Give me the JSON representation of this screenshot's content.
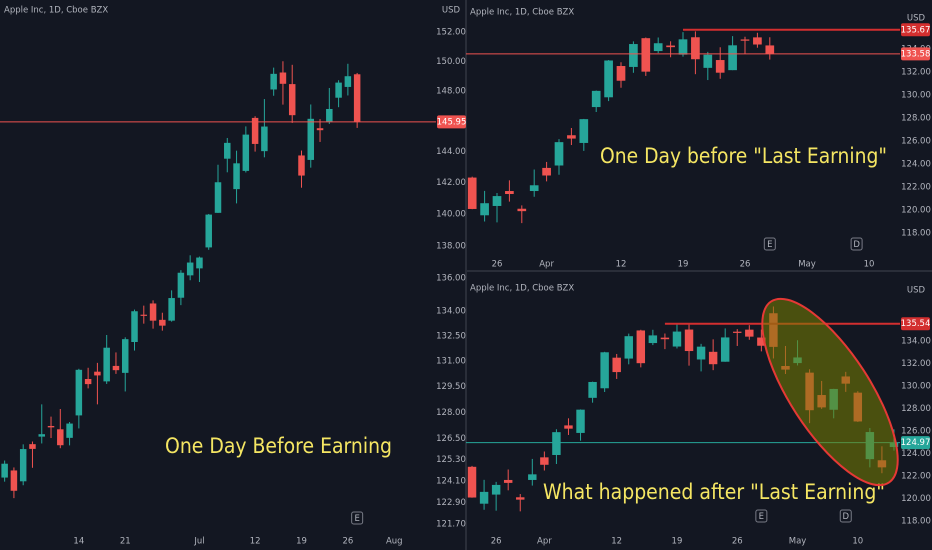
{
  "chart_data": [
    {
      "type": "candlestick",
      "title": "Apple Inc, 1D, Cboe BZX",
      "currency": "USD",
      "annotation": "One Day Before Earning",
      "log_scale": true,
      "ylim": [
        121.37,
        154.21
      ],
      "yticks": [
        {
          "value": 152,
          "label": "152.00"
        },
        {
          "value": 150,
          "label": "150.00"
        },
        {
          "value": 148,
          "label": "148.00"
        },
        {
          "value": 144,
          "label": "144.00"
        },
        {
          "value": 142,
          "label": "142.00"
        },
        {
          "value": 140,
          "label": "140.00"
        },
        {
          "value": 138,
          "label": "138.00"
        },
        {
          "value": 136,
          "label": "136.00"
        },
        {
          "value": 134,
          "label": "134.00"
        },
        {
          "value": 132.5,
          "label": "132.50"
        },
        {
          "value": 131,
          "label": "131.00"
        },
        {
          "value": 129.5,
          "label": "129.50"
        },
        {
          "value": 128,
          "label": "128.00"
        },
        {
          "value": 126.5,
          "label": "126.50"
        },
        {
          "value": 125.3,
          "label": "125.30"
        },
        {
          "value": 124.1,
          "label": "124.10"
        },
        {
          "value": 122.9,
          "label": "122.90"
        },
        {
          "value": 121.7,
          "label": "121.70"
        }
      ],
      "categories": [
        null,
        null,
        null,
        null,
        null,
        null,
        null,
        null,
        "14",
        null,
        null,
        null,
        null,
        "21",
        null,
        null,
        null,
        null,
        null,
        null,
        null,
        "Jul",
        null,
        null,
        null,
        null,
        null,
        "12",
        null,
        null,
        null,
        null,
        "19",
        null,
        null,
        null,
        null,
        "26",
        null,
        null,
        null,
        null,
        "Aug",
        null,
        null,
        null,
        null
      ],
      "open": [
        124.28,
        124.68,
        124.07,
        126.17,
        126.6,
        127.21,
        127.02,
        126.53,
        127.82,
        129.94,
        130.37,
        129.8,
        130.71,
        130.3,
        132.13,
        133.77,
        134.45,
        133.46,
        133.41,
        134.8,
        136.17,
        136.6,
        137.9,
        140.07,
        143.54,
        141.58,
        142.75,
        146.21,
        144.03,
        148.1,
        149.24,
        148.46,
        143.75,
        143.46,
        145.53,
        145.94,
        147.55,
        148.27,
        149.12,
        null,
        null,
        null,
        null,
        null,
        null,
        null,
        null
      ],
      "high": [
        125.24,
        124.85,
        126.16,
        126.32,
        128.46,
        127.75,
        128.19,
        127.44,
        130.54,
        130.6,
        130.89,
        132.55,
        131.51,
        132.41,
        134.08,
        134.32,
        134.64,
        133.89,
        135.25,
        136.49,
        137.41,
        137.33,
        140.0,
        143.15,
        144.89,
        144.06,
        145.65,
        146.32,
        147.46,
        149.57,
        150.0,
        149.76,
        144.07,
        147.1,
        146.13,
        148.2,
        148.72,
        149.83,
        149.21,
        null,
        null,
        null,
        null,
        null,
        null,
        null,
        null
      ],
      "low": [
        124.05,
        123.13,
        123.85,
        124.83,
        126.21,
        126.52,
        125.94,
        126.1,
        127.07,
        129.39,
        128.46,
        129.65,
        130.24,
        129.21,
        131.62,
        133.23,
        132.93,
        132.81,
        133.35,
        134.35,
        135.87,
        135.76,
        137.75,
        140.07,
        142.66,
        140.67,
        142.65,
        144.0,
        143.63,
        147.68,
        147.09,
        145.88,
        141.67,
        142.96,
        144.63,
        145.81,
        146.92,
        147.7,
        145.55,
        null,
        null,
        null,
        null,
        null,
        null,
        null,
        null
      ],
      "close": [
        125.06,
        123.54,
        125.89,
        125.9,
        126.74,
        127.13,
        126.11,
        127.35,
        130.48,
        129.64,
        130.15,
        131.79,
        130.46,
        132.3,
        133.98,
        133.7,
        133.41,
        133.11,
        134.78,
        136.33,
        136.96,
        137.27,
        139.96,
        142.02,
        144.57,
        143.24,
        145.11,
        144.5,
        145.64,
        149.15,
        148.48,
        146.39,
        142.45,
        146.15,
        145.4,
        146.8,
        148.56,
        148.99,
        145.95,
        null,
        null,
        null,
        null,
        null,
        null,
        null,
        null
      ],
      "up_color": "#26a69a",
      "down_color": "#ef5350",
      "price_lines": [
        {
          "value": 145.95,
          "color": "#ef5350",
          "style": "thin"
        }
      ],
      "events": [
        {
          "label": "E",
          "index": 38
        }
      ]
    },
    {
      "type": "candlestick",
      "title": "Apple Inc, 1D, Cboe BZX",
      "currency": "USD",
      "annotation": "One Day before \"Last Earning\"",
      "log_scale": false,
      "ylim": [
        116.0,
        138.26
      ],
      "yticks": [
        {
          "value": 134,
          "label": "134.00"
        },
        {
          "value": 132,
          "label": "132.00"
        },
        {
          "value": 130,
          "label": "130.00"
        },
        {
          "value": 128,
          "label": "128.00"
        },
        {
          "value": 126,
          "label": "126.00"
        },
        {
          "value": 124,
          "label": "124.00"
        },
        {
          "value": 122,
          "label": "122.00"
        },
        {
          "value": 120,
          "label": "120.00"
        },
        {
          "value": 118,
          "label": "118.00"
        }
      ],
      "categories": [
        null,
        null,
        "26",
        null,
        null,
        null,
        "Apr",
        null,
        null,
        null,
        null,
        null,
        "12",
        null,
        null,
        null,
        null,
        "19",
        null,
        null,
        null,
        null,
        "26",
        null,
        null,
        null,
        null,
        "May",
        null,
        null,
        null,
        null,
        "10",
        null,
        null
      ],
      "open": [
        122.82,
        119.54,
        120.35,
        121.65,
        120.11,
        121.65,
        123.66,
        123.87,
        126.5,
        125.83,
        128.95,
        129.8,
        132.52,
        132.44,
        134.94,
        133.82,
        134.3,
        133.51,
        135.02,
        132.36,
        133.04,
        132.16,
        134.83,
        135.01,
        134.31,
        null,
        null,
        null,
        null,
        null,
        null,
        null,
        null,
        null,
        null
      ],
      "high": [
        122.9,
        121.66,
        121.48,
        122.58,
        120.4,
        123.52,
        124.18,
        126.16,
        127.13,
        127.92,
        130.39,
        133.04,
        132.85,
        134.66,
        135.0,
        135.0,
        134.67,
        135.47,
        135.53,
        133.75,
        134.15,
        135.12,
        135.06,
        135.41,
        135.02,
        null,
        null,
        null,
        null,
        null,
        null,
        null,
        null,
        null,
        null
      ],
      "low": [
        120.07,
        119.0,
        118.92,
        120.73,
        118.86,
        121.15,
        122.49,
        123.07,
        125.65,
        125.14,
        128.52,
        129.47,
        130.63,
        131.93,
        131.66,
        133.64,
        133.28,
        133.34,
        131.81,
        131.3,
        131.41,
        132.16,
        133.56,
        134.11,
        133.08,
        null,
        null,
        null,
        null,
        null,
        null,
        null,
        null,
        null,
        null
      ],
      "close": [
        120.09,
        120.59,
        121.21,
        121.39,
        119.9,
        122.15,
        123.0,
        125.9,
        126.21,
        127.9,
        130.36,
        133.0,
        131.24,
        134.43,
        132.03,
        134.5,
        134.16,
        134.84,
        133.11,
        133.5,
        131.94,
        134.32,
        134.72,
        134.39,
        133.58,
        null,
        null,
        null,
        null,
        null,
        null,
        null,
        null,
        null,
        null
      ],
      "up_color": "#26a69a",
      "down_color": "#ef5350",
      "price_lines": [
        {
          "value": 135.67,
          "color": "#d32f2f",
          "style": "thick",
          "start": 17
        },
        {
          "value": 133.58,
          "color": "#ef5350",
          "style": "thin"
        }
      ],
      "events": [
        {
          "label": "E",
          "index": 24
        },
        {
          "label": "D",
          "index": 31
        }
      ]
    },
    {
      "type": "candlestick",
      "title": "Apple Inc, 1D, Cboe BZX",
      "currency": "USD",
      "annotation": "What happened after \"Last Earning\"",
      "log_scale": false,
      "ylim": [
        117.38,
        139.78
      ],
      "yticks": [
        {
          "value": 134,
          "label": "134.00"
        },
        {
          "value": 132,
          "label": "132.00"
        },
        {
          "value": 130,
          "label": "130.00"
        },
        {
          "value": 128,
          "label": "128.00"
        },
        {
          "value": 126,
          "label": "126.00"
        },
        {
          "value": 124,
          "label": "124.00"
        },
        {
          "value": 122,
          "label": "122.00"
        },
        {
          "value": 120,
          "label": "120.00"
        },
        {
          "value": 118,
          "label": "118.00"
        }
      ],
      "categories": [
        null,
        null,
        "26",
        null,
        null,
        null,
        "Apr",
        null,
        null,
        null,
        null,
        null,
        "12",
        null,
        null,
        null,
        null,
        "19",
        null,
        null,
        null,
        null,
        "26",
        null,
        null,
        null,
        null,
        "May",
        null,
        null,
        null,
        null,
        "10",
        null,
        null,
        null
      ],
      "open": [
        122.82,
        119.54,
        120.35,
        121.65,
        120.11,
        121.65,
        123.66,
        123.87,
        126.5,
        125.83,
        128.95,
        129.8,
        132.52,
        132.44,
        134.94,
        133.82,
        134.3,
        133.51,
        135.02,
        132.36,
        133.04,
        132.16,
        134.83,
        135.01,
        134.31,
        136.47,
        131.78,
        132.04,
        131.19,
        129.2,
        127.89,
        130.85,
        129.41,
        123.5,
        123.4,
        124.58
      ],
      "high": [
        122.9,
        121.66,
        121.48,
        122.58,
        120.4,
        123.52,
        124.18,
        126.16,
        127.13,
        127.92,
        130.39,
        133.04,
        132.85,
        134.66,
        135.0,
        135.0,
        134.67,
        135.47,
        135.53,
        133.75,
        134.15,
        135.12,
        135.06,
        135.41,
        135.02,
        137.07,
        133.56,
        134.07,
        131.49,
        130.45,
        129.75,
        131.26,
        129.54,
        126.27,
        124.64,
        126.15
      ],
      "low": [
        120.07,
        119.0,
        118.92,
        120.73,
        118.86,
        121.15,
        122.49,
        123.07,
        125.65,
        125.14,
        128.52,
        129.47,
        130.63,
        131.93,
        131.66,
        133.64,
        133.28,
        133.34,
        131.81,
        131.3,
        131.41,
        132.16,
        133.56,
        134.11,
        133.08,
        132.45,
        131.07,
        131.83,
        126.7,
        127.97,
        127.13,
        129.48,
        126.81,
        122.77,
        122.25,
        124.26
      ],
      "close": [
        120.09,
        120.59,
        121.21,
        121.39,
        119.9,
        122.15,
        123.0,
        125.9,
        126.21,
        127.9,
        130.36,
        133.0,
        131.24,
        134.43,
        132.03,
        134.5,
        134.16,
        134.84,
        133.11,
        133.5,
        131.94,
        134.32,
        134.72,
        134.39,
        133.58,
        133.48,
        131.46,
        132.54,
        127.85,
        128.1,
        129.74,
        130.21,
        126.85,
        125.91,
        122.77,
        124.97
      ],
      "up_color": "#26a69a",
      "down_color": "#ef5350",
      "price_lines": [
        {
          "value": 135.54,
          "color": "#d32f2f",
          "style": "thick",
          "start": 16
        },
        {
          "value": 124.97,
          "color": "#26a69a",
          "style": "thin"
        }
      ],
      "events": [
        {
          "label": "E",
          "index": 24
        },
        {
          "label": "D",
          "index": 31
        }
      ]
    }
  ]
}
